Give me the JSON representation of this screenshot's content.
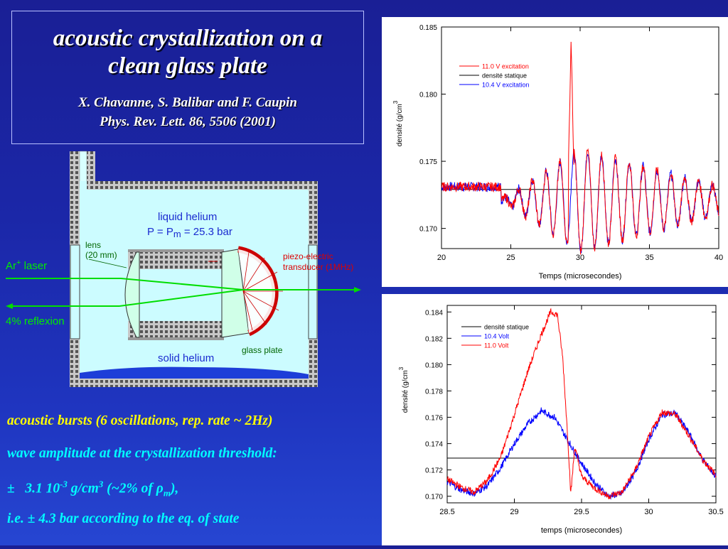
{
  "title_box": {
    "title_line1": "acoustic crystallization on a",
    "title_line2": "clean glass plate",
    "authors": "X. Chavanne, S. Balibar and F. Caupin",
    "reference": "Phys. Rev. Lett. 86, 5506 (2001)"
  },
  "diagram": {
    "liquid_label": "liquid helium",
    "pressure_label": "P = P",
    "pressure_sub": "m",
    "pressure_value": " = 25.3 bar",
    "lens_label_1": "lens",
    "lens_label_2": "(20 mm)",
    "laser_label": "Ar",
    "laser_sup": "+",
    "laser_label_2": " laser",
    "reflection_label": "4% reflexion",
    "piezo_label_1": "piezo-electric",
    "piezo_label_2": "transducer (1MHz)",
    "glass_label": "glass plate",
    "solid_label": "solid helium"
  },
  "captions": {
    "line1": "acoustic bursts (6 oscillations, rep. rate ~ 2Hz)",
    "line2": "wave amplitude at the crystallization threshold:",
    "line3_pm": "±",
    "line3_value": "3.1 10",
    "line3_exp": "-3",
    "line3_unit": " g/cm",
    "line3_unit_exp": "3",
    "line3_rest": " (~2% of ",
    "line3_rho": "ρ",
    "line3_rho_sub": "m",
    "line3_end": "),",
    "line4": "i.e. ± 4.3  bar according to the eq. of state"
  },
  "chart_data": [
    {
      "type": "line",
      "xlabel": "Temps  (microsecondes)",
      "ylabel": "densité  (g/cm",
      "ylabel_exp": "3",
      "xlim": [
        20,
        40
      ],
      "ylim": [
        0.1685,
        0.185
      ],
      "xticks": [
        "20",
        "25",
        "30",
        "35",
        "40"
      ],
      "yticks": [
        "0.170",
        "0.175",
        "0.180",
        "0.185"
      ],
      "ytick_values": [
        0.17,
        0.175,
        0.18,
        0.185
      ],
      "xtick_values": [
        20,
        25,
        30,
        35,
        40
      ],
      "legend_position": "top-left",
      "legend": [
        "11.0 V excitation",
        "densité statique",
        "10.4 V  excitation"
      ],
      "colors": [
        "#ff0000",
        "#000000",
        "#0000ff"
      ],
      "static_density": 0.1729,
      "series": [
        {
          "name": "11.0 V excitation",
          "x": [
            20,
            24.3,
            25.3,
            26.3,
            27.3,
            28.3,
            28.8,
            29.2,
            29.35,
            29.5,
            29.8,
            30.3,
            31.3,
            32.3,
            33.3,
            34.3,
            35.3,
            36.3,
            37.3,
            38.3,
            39.3,
            40
          ],
          "y": [
            0.1731,
            0.1731,
            0.1722,
            0.1715,
            0.1712,
            0.1713,
            0.1708,
            0.1735,
            0.1842,
            0.1735,
            0.1705,
            0.1722,
            0.1718,
            0.1722,
            0.1724,
            0.1722,
            0.1725,
            0.1725,
            0.1727,
            0.1727,
            0.1728,
            0.1728
          ]
        },
        {
          "name": "10.4 V  excitation",
          "x": [
            20,
            24.3,
            25.3,
            26.3,
            27.3,
            28.3,
            29.3,
            30.3,
            31.3,
            32.3,
            33.3,
            34.3,
            35.3,
            36.3,
            37.3,
            38.3,
            39.3,
            40
          ],
          "y": [
            0.1731,
            0.1731,
            0.1722,
            0.1715,
            0.1712,
            0.1711,
            0.1705,
            0.171,
            0.1713,
            0.1718,
            0.172,
            0.172,
            0.1723,
            0.1724,
            0.1726,
            0.1726,
            0.1727,
            0.1728
          ]
        }
      ]
    },
    {
      "type": "line",
      "xlabel": "temps   (microsecondes)",
      "ylabel": "densité  (g/cm",
      "ylabel_exp": "3",
      "xlim": [
        28.5,
        30.5
      ],
      "ylim": [
        0.1695,
        0.1845
      ],
      "xticks": [
        "28.5",
        "29",
        "29.5",
        "30",
        "30.5"
      ],
      "xtick_values": [
        28.5,
        29,
        29.5,
        30,
        30.5
      ],
      "yticks": [
        "0.170",
        "0.172",
        "0.174",
        "0.176",
        "0.178",
        "0.180",
        "0.182",
        "0.184"
      ],
      "ytick_values": [
        0.17,
        0.172,
        0.174,
        0.176,
        0.178,
        0.18,
        0.182,
        0.184
      ],
      "legend_position": "top-left",
      "legend": [
        "densité statique",
        "10.4 Volt",
        "11.0 Volt"
      ],
      "colors": [
        "#000000",
        "#0000ff",
        "#ff0000"
      ],
      "static_density": 0.1729,
      "series": [
        {
          "name": "10.4 Volt",
          "x": [
            28.5,
            28.6,
            28.7,
            28.8,
            28.9,
            29.0,
            29.1,
            29.2,
            29.3,
            29.4,
            29.5,
            29.6,
            29.7,
            29.8,
            29.9,
            30.0,
            30.1,
            30.2,
            30.3,
            30.4,
            30.5
          ],
          "y": [
            0.1711,
            0.1705,
            0.1702,
            0.1708,
            0.1722,
            0.174,
            0.1755,
            0.1765,
            0.176,
            0.1742,
            0.1725,
            0.171,
            0.17,
            0.1702,
            0.1718,
            0.1743,
            0.1762,
            0.1763,
            0.1748,
            0.1728,
            0.1715
          ]
        },
        {
          "name": "11.0 Volt",
          "x": [
            28.5,
            28.6,
            28.7,
            28.8,
            28.9,
            29.0,
            29.1,
            29.2,
            29.27,
            29.32,
            29.36,
            29.4,
            29.42,
            29.45,
            29.5,
            29.6,
            29.7,
            29.8,
            29.9,
            30.0,
            30.1,
            30.2,
            30.3,
            30.4,
            30.5
          ],
          "y": [
            0.1713,
            0.1707,
            0.1703,
            0.1712,
            0.173,
            0.1762,
            0.1795,
            0.1823,
            0.184,
            0.1838,
            0.1805,
            0.174,
            0.1702,
            0.1738,
            0.1715,
            0.1706,
            0.17,
            0.1703,
            0.172,
            0.1745,
            0.1764,
            0.1762,
            0.1746,
            0.1728,
            0.1716
          ]
        }
      ]
    }
  ]
}
